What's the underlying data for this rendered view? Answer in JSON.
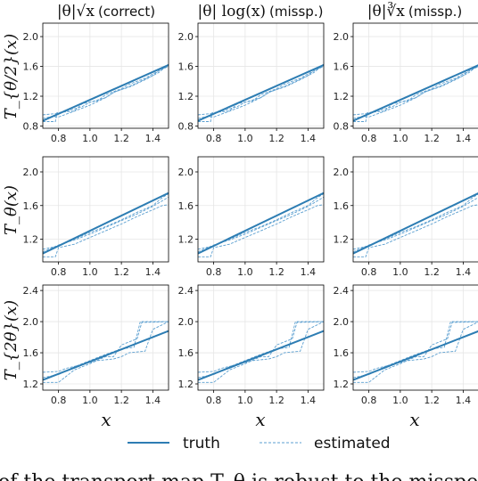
{
  "column_titles": [
    {
      "math": "|θ|√x",
      "note": "(correct)"
    },
    {
      "math": "|θ| log(x)",
      "note": "(missp.)"
    },
    {
      "math": "|θ|∛x",
      "note": "(missp.)"
    }
  ],
  "row_labels": [
    "T_{θ/2}(x)",
    "T_θ(x)",
    "T_{2θ}(x)"
  ],
  "x_label": "x",
  "legend": {
    "truth": "truth",
    "estimated": "estimated"
  },
  "caption_fragment": "of the transport map T_θ is robust to the misspecification",
  "colors": {
    "truth": "#2d7db3",
    "estimated": "#5b9fd0",
    "grid": "#e6e6e6",
    "axis": "#000000"
  },
  "chart_data": {
    "type": "line",
    "layout": "3x3 grid",
    "xlim": [
      0.7,
      1.5
    ],
    "xticks": [
      0.8,
      1.0,
      1.2,
      1.4
    ],
    "grid": true,
    "rows": [
      {
        "label": "T_{θ/2}(x)",
        "ylim": [
          0.77,
          2.18
        ],
        "yticks": [
          0.8,
          1.2,
          1.6,
          2.0
        ],
        "truth": {
          "x": [
            0.7,
            1.5
          ],
          "y": [
            0.87,
            1.62
          ]
        },
        "estimated": [
          {
            "x": [
              0.7,
              0.78,
              0.79,
              0.9,
              0.95,
              1.05,
              1.1,
              1.2,
              1.25,
              1.35,
              1.4,
              1.5
            ],
            "y": [
              0.86,
              0.86,
              0.98,
              1.0,
              1.1,
              1.14,
              1.22,
              1.3,
              1.36,
              1.44,
              1.5,
              1.6
            ]
          },
          {
            "x": [
              0.7,
              0.8,
              0.85,
              0.95,
              1.0,
              1.1,
              1.15,
              1.25,
              1.3,
              1.4,
              1.45,
              1.5
            ],
            "y": [
              0.95,
              0.97,
              1.0,
              1.06,
              1.12,
              1.18,
              1.25,
              1.33,
              1.38,
              1.48,
              1.56,
              1.6
            ]
          },
          {
            "x": [
              0.7,
              0.76,
              0.8,
              0.9,
              1.0,
              1.08,
              1.16,
              1.26,
              1.35,
              1.44,
              1.5
            ],
            "y": [
              0.9,
              0.93,
              0.92,
              1.0,
              1.08,
              1.16,
              1.26,
              1.33,
              1.42,
              1.52,
              1.63
            ]
          }
        ]
      },
      {
        "label": "T_θ(x)",
        "ylim": [
          0.93,
          2.18
        ],
        "yticks": [
          1.2,
          1.6,
          2.0
        ],
        "truth": {
          "x": [
            0.7,
            1.5
          ],
          "y": [
            1.03,
            1.75
          ]
        },
        "estimated": [
          {
            "x": [
              0.7,
              0.78,
              0.8,
              0.9,
              1.0,
              1.1,
              1.2,
              1.3,
              1.4,
              1.46,
              1.5
            ],
            "y": [
              0.99,
              0.99,
              1.1,
              1.14,
              1.22,
              1.3,
              1.38,
              1.47,
              1.55,
              1.6,
              1.61
            ]
          },
          {
            "x": [
              0.7,
              0.8,
              0.9,
              1.0,
              1.1,
              1.2,
              1.3,
              1.4,
              1.45,
              1.5
            ],
            "y": [
              1.08,
              1.12,
              1.2,
              1.28,
              1.35,
              1.43,
              1.52,
              1.6,
              1.68,
              1.74
            ]
          },
          {
            "x": [
              0.7,
              0.8,
              0.9,
              1.0,
              1.1,
              1.2,
              1.3,
              1.4,
              1.5
            ],
            "y": [
              1.05,
              1.13,
              1.19,
              1.26,
              1.34,
              1.42,
              1.5,
              1.59,
              1.7
            ]
          }
        ]
      },
      {
        "label": "T_{2θ}(x)",
        "ylim": [
          1.12,
          2.47
        ],
        "yticks": [
          1.2,
          1.6,
          2.0,
          2.4
        ],
        "truth": {
          "x": [
            0.7,
            1.5
          ],
          "y": [
            1.25,
            1.88
          ]
        },
        "estimated": [
          {
            "x": [
              0.7,
              0.8,
              0.9,
              1.0,
              1.1,
              1.2,
              1.28,
              1.32,
              1.4,
              1.5
            ],
            "y": [
              1.28,
              1.32,
              1.42,
              1.5,
              1.58,
              1.65,
              1.67,
              2.0,
              2.0,
              2.0
            ]
          },
          {
            "x": [
              0.7,
              0.8,
              0.9,
              1.0,
              1.1,
              1.15,
              1.2,
              1.3,
              1.33,
              1.5
            ],
            "y": [
              1.22,
              1.22,
              1.38,
              1.46,
              1.55,
              1.55,
              1.7,
              1.78,
              1.99,
              2.0
            ]
          },
          {
            "x": [
              0.7,
              0.8,
              0.85,
              0.95,
              1.05,
              1.15,
              1.2,
              1.25,
              1.35,
              1.4,
              1.5
            ],
            "y": [
              1.35,
              1.36,
              1.4,
              1.45,
              1.5,
              1.52,
              1.55,
              1.6,
              1.62,
              1.9,
              2.0
            ]
          }
        ]
      }
    ]
  }
}
